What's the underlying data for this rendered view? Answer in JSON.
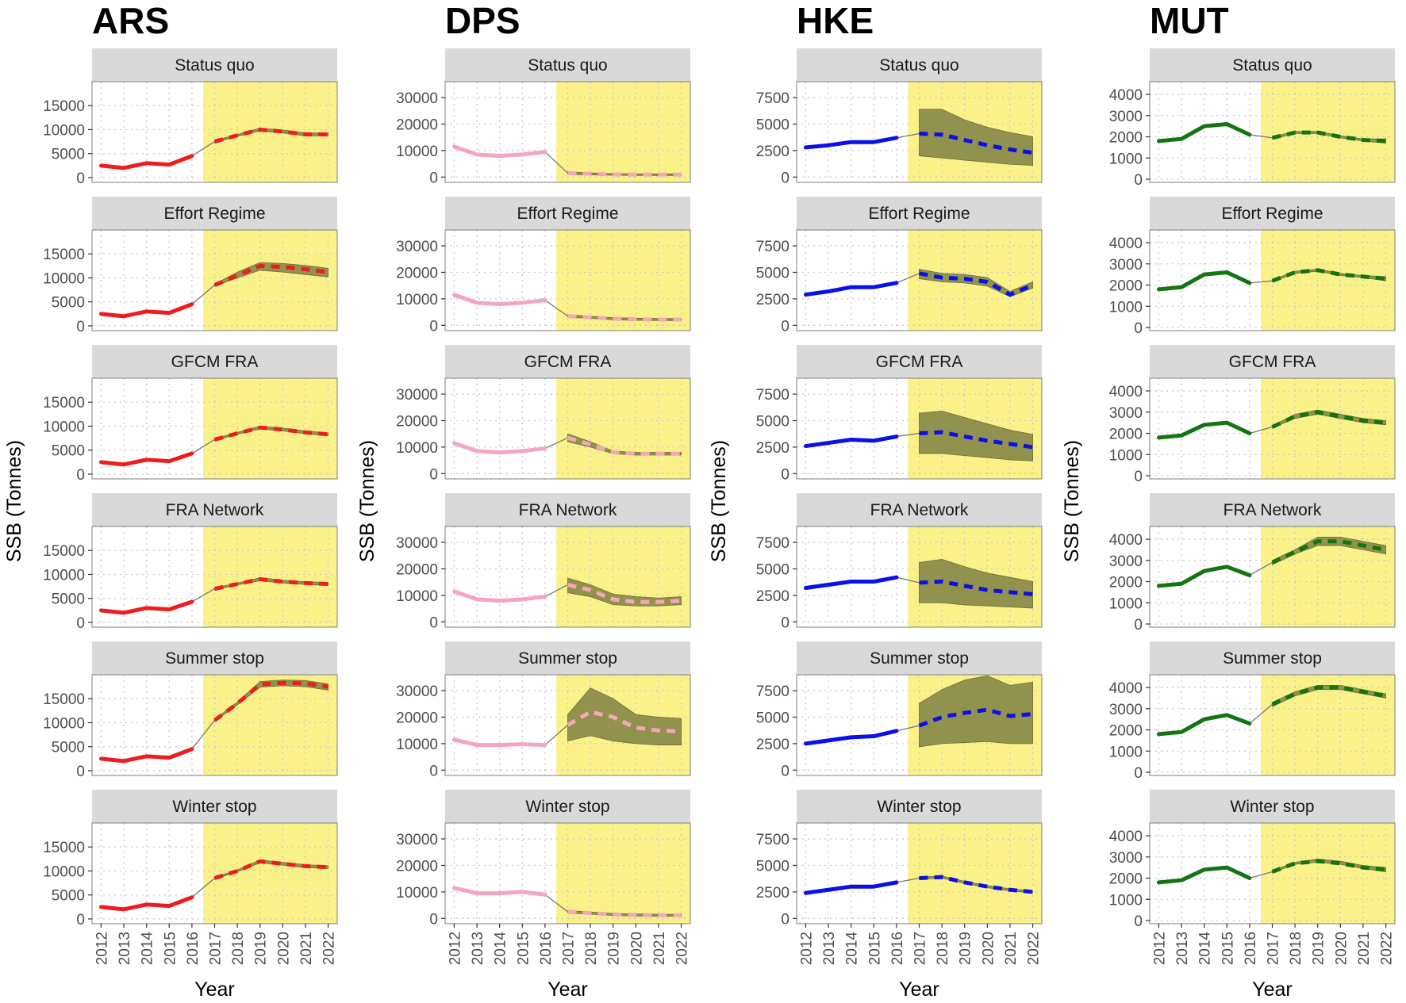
{
  "chart_data": {
    "type": "line",
    "xlabel": "Year",
    "ylabel": "SSB (Tonnes)",
    "x_ticks": [
      2012,
      2013,
      2014,
      2015,
      2016,
      2017,
      2018,
      2019,
      2020,
      2021,
      2022
    ],
    "xlim": [
      2011.6,
      2022.4
    ],
    "history_years": [
      2012,
      2013,
      2014,
      2015,
      2016
    ],
    "projection_years": [
      2017,
      2018,
      2019,
      2020,
      2021,
      2022
    ],
    "projection_start": 2016.5,
    "scenarios": [
      "Status quo",
      "Effort Regime",
      "GFCM FRA",
      "FRA Network",
      "Summer stop",
      "Winter stop"
    ],
    "colors": {
      "strip": "#d9d9d9",
      "projection_band": "#fbf189",
      "uncertainty": "#888a48",
      "grid": "#c9c9c9"
    },
    "species": [
      {
        "code": "ARS",
        "color": "#ee1d1d",
        "dash_color": "#ee1d1d",
        "ylim": [
          -1000,
          20000
        ],
        "y_ticks": [
          0,
          5000,
          10000,
          15000
        ],
        "panels": [
          {
            "scenario": "Status quo",
            "history": [
              2500,
              2000,
              3000,
              2700,
              4500
            ],
            "projection": [
              7500,
              8800,
              10000,
              9600,
              9000,
              9000
            ],
            "lower": [
              7300,
              8600,
              9700,
              9300,
              8700,
              8700
            ],
            "upper": [
              7700,
              9000,
              10300,
              9900,
              9300,
              9300
            ]
          },
          {
            "scenario": "Effort Regime",
            "history": [
              2500,
              2000,
              3000,
              2700,
              4500
            ],
            "projection": [
              8500,
              10500,
              12500,
              12300,
              11800,
              11200
            ],
            "lower": [
              8300,
              10000,
              11600,
              11200,
              10700,
              10200
            ],
            "upper": [
              8700,
              11200,
              13200,
              13000,
              12600,
              12000
            ]
          },
          {
            "scenario": "GFCM FRA",
            "history": [
              2500,
              2000,
              3000,
              2700,
              4300
            ],
            "projection": [
              7200,
              8500,
              9700,
              9300,
              8700,
              8300
            ],
            "lower": [
              7000,
              8300,
              9400,
              9000,
              8400,
              8000
            ],
            "upper": [
              7400,
              8700,
              10000,
              9600,
              9000,
              8600
            ]
          },
          {
            "scenario": "FRA Network",
            "history": [
              2500,
              2000,
              3000,
              2700,
              4300
            ],
            "projection": [
              7000,
              8000,
              9000,
              8500,
              8200,
              8000
            ],
            "lower": [
              6800,
              7800,
              8700,
              8200,
              7900,
              7700
            ],
            "upper": [
              7200,
              8200,
              9300,
              8800,
              8500,
              8300
            ]
          },
          {
            "scenario": "Summer stop",
            "history": [
              2500,
              2000,
              3000,
              2700,
              4500
            ],
            "projection": [
              10500,
              14000,
              18000,
              18300,
              18200,
              17500
            ],
            "lower": [
              10300,
              13700,
              17400,
              17700,
              17500,
              16800
            ],
            "upper": [
              10700,
              14300,
              18600,
              18900,
              18800,
              18100
            ]
          },
          {
            "scenario": "Winter stop",
            "history": [
              2500,
              2000,
              3000,
              2700,
              4500
            ],
            "projection": [
              8500,
              10000,
              12000,
              11500,
              11000,
              10800
            ],
            "lower": [
              8300,
              9800,
              11700,
              11200,
              10700,
              10500
            ],
            "upper": [
              8700,
              10200,
              12300,
              11800,
              11300,
              11100
            ]
          }
        ]
      },
      {
        "code": "DPS",
        "color": "#f4a7bb",
        "dash_color": "#f4a7bb",
        "ylim": [
          -2000,
          36000
        ],
        "y_ticks": [
          0,
          10000,
          20000,
          30000
        ],
        "panels": [
          {
            "scenario": "Status quo",
            "history": [
              11500,
              8500,
              8000,
              8500,
              9500
            ],
            "projection": [
              1500,
              1200,
              1000,
              900,
              900,
              900
            ],
            "lower": [
              1000,
              800,
              700,
              600,
              600,
              600
            ],
            "upper": [
              2000,
              1600,
              1300,
              1200,
              1200,
              1200
            ]
          },
          {
            "scenario": "Effort Regime",
            "history": [
              11500,
              8500,
              8000,
              8500,
              9500
            ],
            "projection": [
              3500,
              3000,
              2500,
              2300,
              2200,
              2200
            ],
            "lower": [
              3000,
              2600,
              2100,
              1900,
              1800,
              1800
            ],
            "upper": [
              4000,
              3400,
              2900,
              2700,
              2600,
              2600
            ]
          },
          {
            "scenario": "GFCM FRA",
            "history": [
              11500,
              8500,
              8000,
              8500,
              9500
            ],
            "projection": [
              13500,
              11000,
              8000,
              7500,
              7500,
              7500
            ],
            "lower": [
              12000,
              10000,
              7500,
              7000,
              7000,
              7000
            ],
            "upper": [
              15000,
              12000,
              8500,
              8000,
              8000,
              8000
            ]
          },
          {
            "scenario": "FRA Network",
            "history": [
              11500,
              8500,
              8000,
              8500,
              9500
            ],
            "projection": [
              14000,
              12000,
              8500,
              7500,
              7500,
              8000
            ],
            "lower": [
              11000,
              9500,
              6500,
              6000,
              6000,
              6500
            ],
            "upper": [
              16500,
              14000,
              10500,
              9500,
              9000,
              9500
            ]
          },
          {
            "scenario": "Summer stop",
            "history": [
              11500,
              9500,
              9500,
              9800,
              9500
            ],
            "projection": [
              17000,
              22000,
              20000,
              16000,
              15000,
              14500
            ],
            "lower": [
              11000,
              13000,
              11000,
              10000,
              9500,
              9500
            ],
            "upper": [
              21000,
              31000,
              27000,
              21000,
              20000,
              19500
            ]
          },
          {
            "scenario": "Winter stop",
            "history": [
              11500,
              9500,
              9500,
              10000,
              9000
            ],
            "projection": [
              2500,
              2000,
              1500,
              1300,
              1200,
              1200
            ],
            "lower": [
              2000,
              1600,
              1100,
              900,
              800,
              800
            ],
            "upper": [
              3000,
              2400,
              1900,
              1700,
              1600,
              1600
            ]
          }
        ]
      },
      {
        "code": "HKE",
        "color": "#0b10e8",
        "dash_color": "#0b10e8",
        "ylim": [
          -500,
          9000
        ],
        "y_ticks": [
          0,
          2500,
          5000,
          7500
        ],
        "panels": [
          {
            "scenario": "Status quo",
            "history": [
              2800,
              3000,
              3300,
              3300,
              3700
            ],
            "projection": [
              4100,
              4000,
              3500,
              3000,
              2600,
              2300
            ],
            "lower": [
              2000,
              1800,
              1600,
              1400,
              1200,
              1100
            ],
            "upper": [
              6400,
              6400,
              5400,
              4700,
              4200,
              3800
            ]
          },
          {
            "scenario": "Effort Regime",
            "history": [
              2900,
              3200,
              3600,
              3600,
              4000
            ],
            "projection": [
              4900,
              4500,
              4400,
              4100,
              2900,
              3800
            ],
            "lower": [
              4400,
              4100,
              4000,
              3700,
              2700,
              3500
            ],
            "upper": [
              5300,
              4900,
              4800,
              4500,
              3200,
              4100
            ]
          },
          {
            "scenario": "GFCM FRA",
            "history": [
              2600,
              2900,
              3200,
              3100,
              3500
            ],
            "projection": [
              3800,
              3900,
              3500,
              3100,
              2800,
              2500
            ],
            "lower": [
              1900,
              1900,
              1700,
              1500,
              1300,
              1200
            ],
            "upper": [
              5700,
              5900,
              5300,
              4700,
              4100,
              3700
            ]
          },
          {
            "scenario": "FRA Network",
            "history": [
              3200,
              3500,
              3800,
              3800,
              4200
            ],
            "projection": [
              3700,
              3800,
              3400,
              3000,
              2800,
              2600
            ],
            "lower": [
              1800,
              1800,
              1600,
              1500,
              1400,
              1300
            ],
            "upper": [
              5600,
              5900,
              5200,
              4600,
              4200,
              3800
            ]
          },
          {
            "scenario": "Summer stop",
            "history": [
              2500,
              2800,
              3100,
              3200,
              3700
            ],
            "projection": [
              4200,
              5000,
              5400,
              5700,
              5100,
              5300
            ],
            "lower": [
              2200,
              2500,
              2600,
              2700,
              2500,
              2500
            ],
            "upper": [
              6300,
              7600,
              8500,
              8900,
              8000,
              8300
            ]
          },
          {
            "scenario": "Winter stop",
            "history": [
              2400,
              2700,
              3000,
              3000,
              3400
            ],
            "projection": [
              3800,
              3900,
              3400,
              3000,
              2700,
              2500
            ],
            "lower": [
              3700,
              3800,
              3300,
              2900,
              2600,
              2400
            ],
            "upper": [
              3900,
              4000,
              3500,
              3100,
              2800,
              2600
            ]
          }
        ]
      },
      {
        "code": "MUT",
        "color": "#127512",
        "dash_color": "#127512",
        "ylim": [
          -150,
          4600
        ],
        "y_ticks": [
          0,
          1000,
          2000,
          3000,
          4000
        ],
        "panels": [
          {
            "scenario": "Status quo",
            "history": [
              1800,
              1900,
              2500,
              2600,
              2100
            ],
            "projection": [
              1950,
              2200,
              2200,
              2000,
              1850,
              1800
            ],
            "lower": [
              1900,
              2150,
              2150,
              1950,
              1800,
              1700
            ],
            "upper": [
              2000,
              2250,
              2250,
              2050,
              1900,
              1900
            ]
          },
          {
            "scenario": "Effort Regime",
            "history": [
              1800,
              1900,
              2500,
              2600,
              2100
            ],
            "projection": [
              2200,
              2600,
              2700,
              2500,
              2400,
              2300
            ],
            "lower": [
              2150,
              2550,
              2650,
              2450,
              2350,
              2200
            ],
            "upper": [
              2250,
              2650,
              2750,
              2550,
              2450,
              2400
            ]
          },
          {
            "scenario": "GFCM FRA",
            "history": [
              1800,
              1900,
              2400,
              2500,
              2000
            ],
            "projection": [
              2300,
              2800,
              3000,
              2800,
              2600,
              2500
            ],
            "lower": [
              2250,
              2700,
              2900,
              2700,
              2500,
              2400
            ],
            "upper": [
              2350,
              2900,
              3100,
              2900,
              2700,
              2600
            ]
          },
          {
            "scenario": "FRA Network",
            "history": [
              1800,
              1900,
              2500,
              2700,
              2300
            ],
            "projection": [
              2900,
              3400,
              3900,
              3900,
              3700,
              3500
            ],
            "lower": [
              2800,
              3300,
              3700,
              3700,
              3500,
              3300
            ],
            "upper": [
              3000,
              3500,
              4100,
              4100,
              3900,
              3700
            ]
          },
          {
            "scenario": "Summer stop",
            "history": [
              1800,
              1900,
              2500,
              2700,
              2300
            ],
            "projection": [
              3200,
              3700,
              4000,
              4000,
              3800,
              3600
            ],
            "lower": [
              3100,
              3600,
              3900,
              3900,
              3700,
              3500
            ],
            "upper": [
              3300,
              3800,
              4100,
              4100,
              3900,
              3700
            ]
          },
          {
            "scenario": "Winter stop",
            "history": [
              1800,
              1900,
              2400,
              2500,
              2000
            ],
            "projection": [
              2300,
              2700,
              2800,
              2700,
              2500,
              2400
            ],
            "lower": [
              2250,
              2650,
              2750,
              2650,
              2450,
              2300
            ],
            "upper": [
              2350,
              2750,
              2900,
              2800,
              2600,
              2500
            ]
          }
        ]
      }
    ]
  }
}
